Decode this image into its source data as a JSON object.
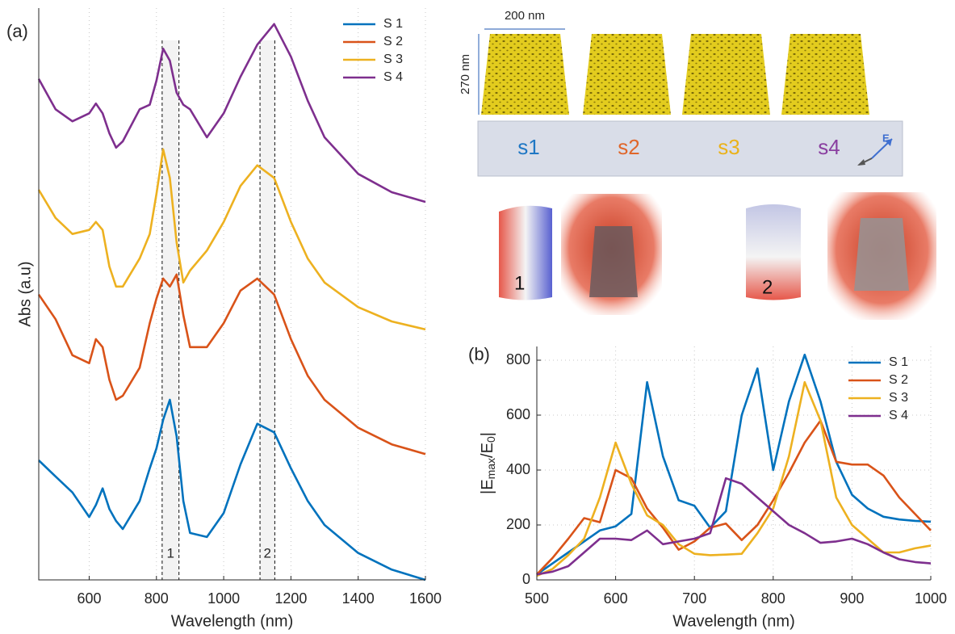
{
  "chart_data": [
    {
      "type": "line",
      "panel": "(a)",
      "xlabel": "Wavelength (nm)",
      "ylabel": "Abs (a.u)",
      "x": [
        450,
        500,
        550,
        600,
        620,
        640,
        660,
        680,
        700,
        750,
        780,
        800,
        820,
        840,
        860,
        880,
        900,
        950,
        1000,
        1050,
        1100,
        1150,
        1200,
        1250,
        1300,
        1400,
        1500,
        1600
      ],
      "series": [
        {
          "name": "S 1",
          "color": "#0072bd",
          "values": [
            20.9,
            18.1,
            15.3,
            11.0,
            13.1,
            16.0,
            12.4,
            10.3,
            8.9,
            13.8,
            19.5,
            23.0,
            28.0,
            31.5,
            25.1,
            13.8,
            8.2,
            7.5,
            11.7,
            20.2,
            27.3,
            25.8,
            19.5,
            13.8,
            9.6,
            4.7,
            1.8,
            0
          ]
        },
        {
          "name": "S 2",
          "color": "#d95319",
          "values": [
            49.9,
            45.6,
            39.3,
            37.9,
            42.1,
            40.7,
            35.0,
            31.5,
            32.2,
            37.1,
            44.9,
            49.2,
            52.7,
            51.3,
            53.4,
            46.3,
            40.7,
            40.7,
            44.9,
            50.6,
            52.7,
            49.9,
            42.1,
            35.7,
            31.5,
            26.6,
            23.7,
            22.0
          ]
        },
        {
          "name": "S 3",
          "color": "#edb120",
          "values": [
            68.2,
            63.3,
            60.5,
            61.2,
            62.6,
            61.2,
            54.8,
            51.3,
            51.3,
            56.2,
            60.5,
            67.5,
            75.3,
            70.3,
            59.0,
            52.0,
            54.1,
            57.6,
            62.6,
            68.9,
            72.5,
            70.3,
            62.6,
            56.2,
            52.0,
            47.7,
            45.2,
            43.8
          ]
        },
        {
          "name": "S 4",
          "color": "#7e2f8e",
          "values": [
            87.6,
            82.3,
            80.2,
            81.6,
            83.3,
            81.6,
            78.1,
            75.6,
            76.7,
            82.3,
            83.1,
            87.3,
            92.9,
            90.8,
            85.2,
            83.1,
            82.3,
            77.4,
            81.6,
            88.0,
            93.6,
            97.2,
            91.5,
            83.8,
            77.4,
            71.0,
            67.8,
            66.1
          ]
        }
      ],
      "bands": [
        {
          "range": [
            817,
            867
          ],
          "label": "1"
        },
        {
          "range": [
            1108,
            1152
          ],
          "label": "2"
        }
      ],
      "xlim": [
        450,
        1600
      ],
      "xticks": [
        600,
        800,
        1000,
        1200,
        1400,
        1600
      ],
      "ylim": [
        0,
        100
      ],
      "grid": true,
      "legend": "upper right"
    },
    {
      "type": "line",
      "panel": "(b)",
      "xlabel": "Wavelength (nm)",
      "ylabel_parts": [
        "|E",
        "max",
        "/E",
        "0",
        "|"
      ],
      "x": [
        500,
        520,
        540,
        560,
        580,
        600,
        620,
        640,
        660,
        680,
        700,
        720,
        740,
        760,
        780,
        800,
        820,
        840,
        860,
        880,
        900,
        920,
        940,
        960,
        980,
        1000
      ],
      "series": [
        {
          "name": "S 1",
          "color": "#0072bd",
          "values": [
            20,
            60,
            100,
            140,
            180,
            195,
            240,
            720,
            450,
            290,
            270,
            190,
            250,
            600,
            770,
            400,
            650,
            820,
            650,
            430,
            310,
            260,
            230,
            220,
            215,
            212
          ]
        },
        {
          "name": "S 2",
          "color": "#d95319",
          "values": [
            20,
            80,
            150,
            225,
            210,
            400,
            370,
            260,
            190,
            110,
            140,
            190,
            205,
            145,
            200,
            290,
            390,
            500,
            580,
            430,
            420,
            420,
            380,
            300,
            240,
            180
          ]
        },
        {
          "name": "S 3",
          "color": "#edb120",
          "values": [
            15,
            40,
            90,
            150,
            300,
            500,
            350,
            235,
            200,
            130,
            95,
            90,
            92,
            95,
            170,
            260,
            450,
            720,
            580,
            300,
            200,
            150,
            100,
            100,
            115,
            125
          ]
        },
        {
          "name": "S 4",
          "color": "#7e2f8e",
          "values": [
            20,
            30,
            50,
            100,
            150,
            150,
            145,
            180,
            130,
            140,
            150,
            170,
            370,
            350,
            300,
            250,
            200,
            170,
            135,
            140,
            150,
            130,
            100,
            75,
            65,
            60
          ]
        }
      ],
      "xlim": [
        500,
        1000
      ],
      "xticks": [
        500,
        600,
        700,
        800,
        900,
        1000
      ],
      "ylim": [
        0,
        850
      ],
      "yticks": [
        0,
        200,
        400,
        600,
        800
      ],
      "grid": true,
      "legend": "upper right"
    }
  ],
  "figure": {
    "width_label": "200 nm",
    "height_label": "270 nm",
    "samples": [
      {
        "label": "s1",
        "color": "#1f77c4"
      },
      {
        "label": "s2",
        "color": "#e0662a"
      },
      {
        "label": "s3",
        "color": "#eab21b"
      },
      {
        "label": "s4",
        "color": "#8a3fa0"
      }
    ],
    "modes": [
      "1",
      "2"
    ],
    "field": "E"
  }
}
